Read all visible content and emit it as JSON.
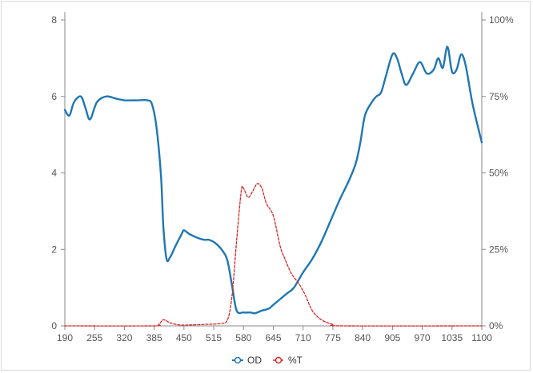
{
  "chart_data": {
    "type": "line",
    "title": "",
    "xlabel": "",
    "ylabel": "",
    "xlim": [
      190,
      1100
    ],
    "ylim_left": [
      0,
      8
    ],
    "ylim_right": [
      0,
      100
    ],
    "x_ticks": [
      190,
      255,
      320,
      385,
      450,
      515,
      580,
      645,
      710,
      775,
      840,
      905,
      970,
      1035,
      1100
    ],
    "y_left_ticks": [
      0,
      2,
      4,
      6,
      8
    ],
    "y_right_ticks": [
      "0%",
      "25%",
      "50%",
      "75%",
      "100%"
    ],
    "legend_position": "bottom-center",
    "grid": false,
    "series": [
      {
        "name": "OD",
        "axis": "left",
        "color": "#1f77b4",
        "style": "solid",
        "points": [
          [
            190,
            5.65
          ],
          [
            200,
            5.5
          ],
          [
            210,
            5.85
          ],
          [
            225,
            6.0
          ],
          [
            235,
            5.7
          ],
          [
            245,
            5.4
          ],
          [
            260,
            5.85
          ],
          [
            280,
            6.0
          ],
          [
            300,
            5.95
          ],
          [
            320,
            5.9
          ],
          [
            350,
            5.9
          ],
          [
            370,
            5.9
          ],
          [
            380,
            5.8
          ],
          [
            390,
            5.2
          ],
          [
            400,
            3.9
          ],
          [
            405,
            2.6
          ],
          [
            412,
            1.75
          ],
          [
            420,
            1.8
          ],
          [
            432,
            2.1
          ],
          [
            445,
            2.4
          ],
          [
            450,
            2.5
          ],
          [
            462,
            2.4
          ],
          [
            480,
            2.3
          ],
          [
            495,
            2.25
          ],
          [
            505,
            2.25
          ],
          [
            520,
            2.15
          ],
          [
            535,
            1.95
          ],
          [
            545,
            1.7
          ],
          [
            555,
            1.05
          ],
          [
            565,
            0.4
          ],
          [
            580,
            0.35
          ],
          [
            595,
            0.35
          ],
          [
            605,
            0.33
          ],
          [
            620,
            0.4
          ],
          [
            635,
            0.45
          ],
          [
            645,
            0.55
          ],
          [
            660,
            0.7
          ],
          [
            675,
            0.85
          ],
          [
            690,
            1.0
          ],
          [
            710,
            1.4
          ],
          [
            730,
            1.75
          ],
          [
            750,
            2.2
          ],
          [
            770,
            2.75
          ],
          [
            790,
            3.3
          ],
          [
            810,
            3.8
          ],
          [
            825,
            4.25
          ],
          [
            835,
            4.8
          ],
          [
            845,
            5.5
          ],
          [
            860,
            5.85
          ],
          [
            870,
            6.0
          ],
          [
            880,
            6.1
          ],
          [
            890,
            6.5
          ],
          [
            905,
            7.1
          ],
          [
            915,
            7.0
          ],
          [
            925,
            6.6
          ],
          [
            935,
            6.3
          ],
          [
            950,
            6.6
          ],
          [
            965,
            6.9
          ],
          [
            980,
            6.6
          ],
          [
            995,
            6.7
          ],
          [
            1005,
            7.0
          ],
          [
            1015,
            6.75
          ],
          [
            1025,
            7.3
          ],
          [
            1035,
            6.65
          ],
          [
            1045,
            6.7
          ],
          [
            1055,
            7.1
          ],
          [
            1065,
            6.8
          ],
          [
            1080,
            5.8
          ],
          [
            1100,
            4.8
          ]
        ]
      },
      {
        "name": "%T",
        "axis": "right",
        "color": "#d62728",
        "style": "dashed",
        "points": [
          [
            190,
            0
          ],
          [
            380,
            0
          ],
          [
            395,
            0.5
          ],
          [
            405,
            2.0
          ],
          [
            420,
            1.0
          ],
          [
            440,
            0.3
          ],
          [
            460,
            0.3
          ],
          [
            500,
            0.5
          ],
          [
            530,
            0.8
          ],
          [
            545,
            2
          ],
          [
            555,
            10
          ],
          [
            565,
            28
          ],
          [
            575,
            44
          ],
          [
            580,
            45
          ],
          [
            590,
            42
          ],
          [
            600,
            44
          ],
          [
            610,
            46.5
          ],
          [
            620,
            45
          ],
          [
            630,
            40
          ],
          [
            645,
            36
          ],
          [
            660,
            26
          ],
          [
            670,
            22
          ],
          [
            685,
            17
          ],
          [
            700,
            14
          ],
          [
            715,
            10
          ],
          [
            730,
            5
          ],
          [
            750,
            2
          ],
          [
            775,
            0.5
          ],
          [
            800,
            0
          ],
          [
            1100,
            0
          ]
        ]
      }
    ]
  }
}
